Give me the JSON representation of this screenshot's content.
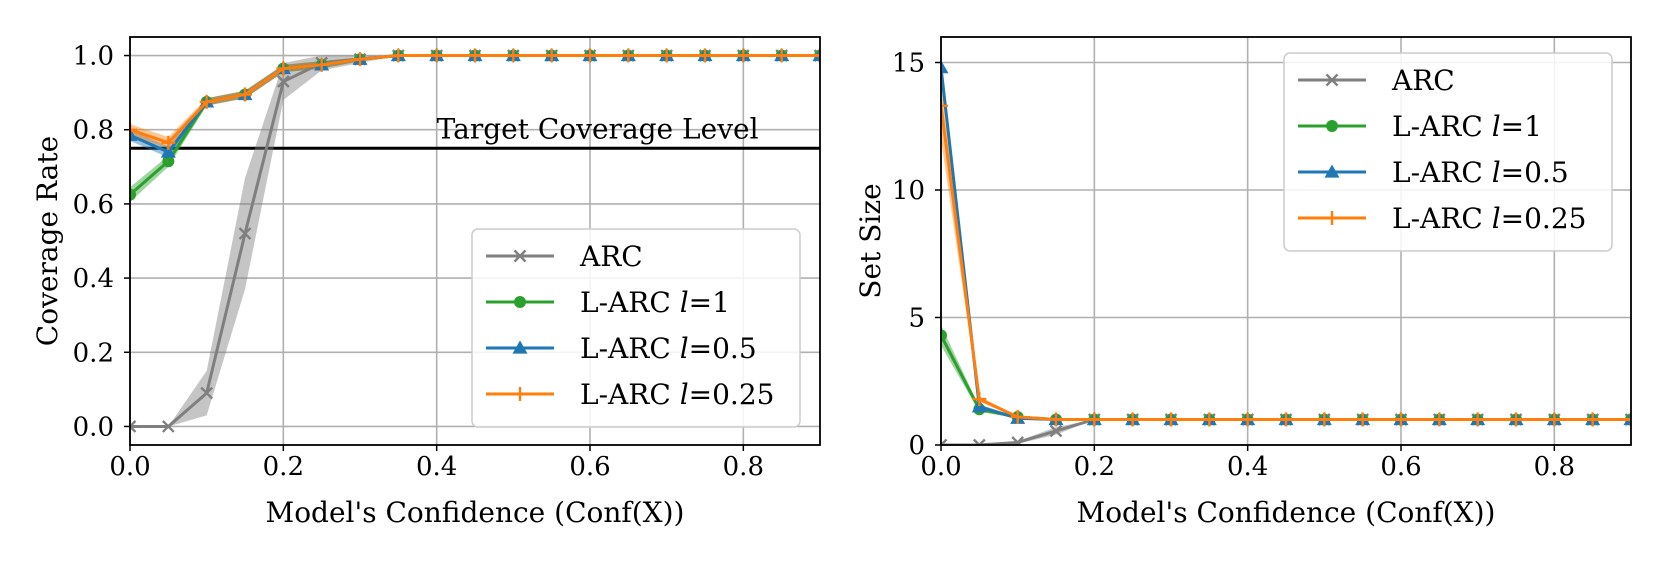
{
  "chart_data": [
    {
      "type": "line",
      "xlabel": "Model's Confidence (Conf(X))",
      "ylabel": "Coverage Rate",
      "xlim": [
        0,
        0.9
      ],
      "ylim": [
        -0.05,
        1.05
      ],
      "xticks": [
        0.0,
        0.2,
        0.4,
        0.6,
        0.8
      ],
      "xtick_labels": [
        "0.0",
        "0.2",
        "0.4",
        "0.6",
        "0.8"
      ],
      "yticks": [
        0.0,
        0.2,
        0.4,
        0.6,
        0.8,
        1.0
      ],
      "ytick_labels": [
        "0.0",
        "0.2",
        "0.4",
        "0.6",
        "0.8",
        "1.0"
      ],
      "grid": true,
      "legend_position": "lower-right",
      "hline": {
        "y": 0.75,
        "label": "Target Coverage Level"
      },
      "x": [
        0,
        0.05,
        0.1,
        0.15,
        0.2,
        0.25,
        0.3,
        0.35,
        0.4,
        0.45,
        0.5,
        0.55,
        0.6,
        0.65,
        0.7,
        0.75,
        0.8,
        0.85,
        0.9
      ],
      "series": [
        {
          "name": "ARC",
          "legend_prefix": "ARC",
          "legend_var": "",
          "legend_value": "",
          "color": "#7f7f7f",
          "marker": "x",
          "values": [
            0,
            0,
            0.09,
            0.52,
            0.93,
            0.98,
            0.99,
            1,
            1,
            1,
            1,
            1,
            1,
            1,
            1,
            1,
            1,
            1,
            1
          ],
          "lower": [
            0,
            0,
            0.03,
            0.37,
            0.88,
            0.96,
            0.98,
            1,
            1,
            1,
            1,
            1,
            1,
            1,
            1,
            1,
            1,
            1,
            1
          ],
          "upper": [
            0,
            0,
            0.15,
            0.67,
            0.98,
            1.0,
            1.0,
            1,
            1,
            1,
            1,
            1,
            1,
            1,
            1,
            1,
            1,
            1,
            1
          ]
        },
        {
          "name": "L-ARC l=1",
          "legend_prefix": "L-ARC ",
          "legend_var": "l",
          "legend_value": "=1",
          "color": "#2ca02c",
          "marker": "o",
          "values": [
            0.625,
            0.715,
            0.875,
            0.895,
            0.965,
            0.975,
            0.99,
            1,
            1,
            1,
            1,
            1,
            1,
            1,
            1,
            1,
            1,
            1,
            1
          ],
          "lower": [
            0.605,
            0.7,
            0.865,
            0.885,
            0.955,
            0.965,
            0.985,
            1,
            1,
            1,
            1,
            1,
            1,
            1,
            1,
            1,
            1,
            1,
            1
          ],
          "upper": [
            0.645,
            0.73,
            0.885,
            0.905,
            0.975,
            0.985,
            0.995,
            1,
            1,
            1,
            1,
            1,
            1,
            1,
            1,
            1,
            1,
            1,
            1
          ]
        },
        {
          "name": "L-ARC l=0.5",
          "legend_prefix": "L-ARC ",
          "legend_var": "l",
          "legend_value": "=0.5",
          "color": "#1f77b4",
          "marker": "^",
          "values": [
            0.785,
            0.74,
            0.875,
            0.895,
            0.965,
            0.975,
            0.99,
            1,
            1,
            1,
            1,
            1,
            1,
            1,
            1,
            1,
            1,
            1,
            1
          ],
          "lower": [
            0.77,
            0.725,
            0.865,
            0.885,
            0.955,
            0.965,
            0.985,
            1,
            1,
            1,
            1,
            1,
            1,
            1,
            1,
            1,
            1,
            1,
            1
          ],
          "upper": [
            0.8,
            0.755,
            0.885,
            0.905,
            0.975,
            0.985,
            0.995,
            1,
            1,
            1,
            1,
            1,
            1,
            1,
            1,
            1,
            1,
            1,
            1
          ]
        },
        {
          "name": "L-ARC l=0.25",
          "legend_prefix": "L-ARC ",
          "legend_var": "l",
          "legend_value": "=0.25",
          "color": "#ff7f0e",
          "marker": "+",
          "values": [
            0.8,
            0.765,
            0.875,
            0.895,
            0.965,
            0.975,
            0.99,
            1,
            1,
            1,
            1,
            1,
            1,
            1,
            1,
            1,
            1,
            1,
            1
          ],
          "lower": [
            0.785,
            0.75,
            0.865,
            0.885,
            0.955,
            0.965,
            0.985,
            1,
            1,
            1,
            1,
            1,
            1,
            1,
            1,
            1,
            1,
            1,
            1
          ],
          "upper": [
            0.815,
            0.78,
            0.885,
            0.905,
            0.975,
            0.985,
            0.995,
            1,
            1,
            1,
            1,
            1,
            1,
            1,
            1,
            1,
            1,
            1,
            1
          ]
        }
      ]
    },
    {
      "type": "line",
      "xlabel": "Model's Confidence (Conf(X))",
      "ylabel": "Set Size",
      "xlim": [
        0,
        0.9
      ],
      "ylim": [
        0,
        16
      ],
      "xticks": [
        0.0,
        0.2,
        0.4,
        0.6,
        0.8
      ],
      "xtick_labels": [
        "0.0",
        "0.2",
        "0.4",
        "0.6",
        "0.8"
      ],
      "yticks": [
        0,
        5,
        10,
        15
      ],
      "ytick_labels": [
        "0",
        "5",
        "10",
        "15"
      ],
      "grid": true,
      "legend_position": "upper-right",
      "x": [
        0,
        0.05,
        0.1,
        0.15,
        0.2,
        0.25,
        0.3,
        0.35,
        0.4,
        0.45,
        0.5,
        0.55,
        0.6,
        0.65,
        0.7,
        0.75,
        0.8,
        0.85,
        0.9
      ],
      "series": [
        {
          "name": "ARC",
          "legend_prefix": "ARC",
          "legend_var": "",
          "legend_value": "",
          "color": "#7f7f7f",
          "marker": "x",
          "values": [
            0,
            0,
            0.1,
            0.55,
            1,
            1,
            1,
            1,
            1,
            1,
            1,
            1,
            1,
            1,
            1,
            1,
            1,
            1,
            1
          ],
          "lower": [
            0,
            0,
            0.05,
            0.4,
            1,
            1,
            1,
            1,
            1,
            1,
            1,
            1,
            1,
            1,
            1,
            1,
            1,
            1,
            1
          ],
          "upper": [
            0,
            0,
            0.15,
            0.7,
            1,
            1,
            1,
            1,
            1,
            1,
            1,
            1,
            1,
            1,
            1,
            1,
            1,
            1,
            1
          ]
        },
        {
          "name": "L-ARC l=1",
          "legend_prefix": "L-ARC ",
          "legend_var": "l",
          "legend_value": "=1",
          "color": "#2ca02c",
          "marker": "o",
          "values": [
            4.3,
            1.4,
            1.1,
            1.0,
            1,
            1,
            1,
            1,
            1,
            1,
            1,
            1,
            1,
            1,
            1,
            1,
            1,
            1,
            1
          ],
          "lower": [
            3.9,
            1.3,
            1.05,
            0.97,
            1,
            1,
            1,
            1,
            1,
            1,
            1,
            1,
            1,
            1,
            1,
            1,
            1,
            1,
            1
          ],
          "upper": [
            4.7,
            1.5,
            1.15,
            1.03,
            1,
            1,
            1,
            1,
            1,
            1,
            1,
            1,
            1,
            1,
            1,
            1,
            1,
            1,
            1
          ]
        },
        {
          "name": "L-ARC l=0.5",
          "legend_prefix": "L-ARC ",
          "legend_var": "l",
          "legend_value": "=0.5",
          "color": "#1f77b4",
          "marker": "^",
          "values": [
            14.8,
            1.5,
            1.05,
            1.0,
            1,
            1,
            1,
            1,
            1,
            1,
            1,
            1,
            1,
            1,
            1,
            1,
            1,
            1,
            1
          ],
          "lower": [
            14.3,
            1.4,
            1.0,
            0.97,
            1,
            1,
            1,
            1,
            1,
            1,
            1,
            1,
            1,
            1,
            1,
            1,
            1,
            1,
            1
          ],
          "upper": [
            15.3,
            1.6,
            1.1,
            1.03,
            1,
            1,
            1,
            1,
            1,
            1,
            1,
            1,
            1,
            1,
            1,
            1,
            1,
            1,
            1
          ]
        },
        {
          "name": "L-ARC l=0.25",
          "legend_prefix": "L-ARC ",
          "legend_var": "l",
          "legend_value": "=0.25",
          "color": "#ff7f0e",
          "marker": "+",
          "values": [
            13.3,
            1.8,
            1.1,
            1.0,
            1,
            1,
            1,
            1,
            1,
            1,
            1,
            1,
            1,
            1,
            1,
            1,
            1,
            1,
            1
          ],
          "lower": [
            12.0,
            1.7,
            1.05,
            0.97,
            1,
            1,
            1,
            1,
            1,
            1,
            1,
            1,
            1,
            1,
            1,
            1,
            1,
            1,
            1
          ],
          "upper": [
            14.6,
            1.9,
            1.15,
            1.03,
            1,
            1,
            1,
            1,
            1,
            1,
            1,
            1,
            1,
            1,
            1,
            1,
            1,
            1,
            1
          ]
        }
      ]
    }
  ]
}
